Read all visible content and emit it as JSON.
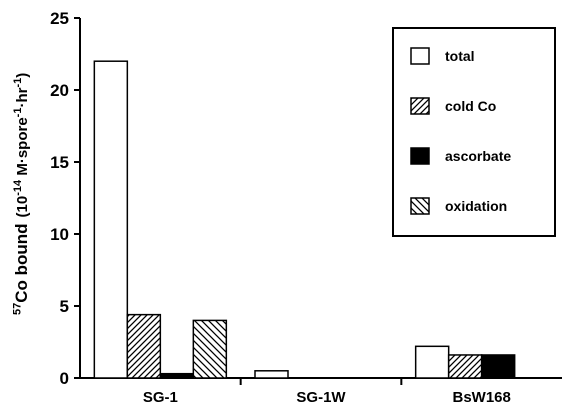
{
  "chart_data": {
    "type": "bar",
    "categories": [
      "SG-1",
      "SG-1W",
      "BsW168"
    ],
    "series": [
      {
        "name": "total",
        "pattern": "empty",
        "values": [
          22.0,
          0.5,
          2.2
        ]
      },
      {
        "name": "cold Co",
        "pattern": "diagonal-right",
        "values": [
          4.4,
          0.0,
          1.6
        ]
      },
      {
        "name": "ascorbate",
        "pattern": "solid",
        "values": [
          0.3,
          0.0,
          1.6
        ]
      },
      {
        "name": "oxidation",
        "pattern": "diagonal-left",
        "values": [
          4.0,
          0.0,
          0.0
        ]
      }
    ],
    "ylabel": {
      "iso_mass": "57",
      "element": "Co bound",
      "units_open": "(10",
      "units_exp": "-14",
      "units_mid": " M·spore",
      "units_exp2": "-1",
      "units_mid2": "·hr",
      "units_exp3": "-1",
      "units_close": ")"
    },
    "ylim": [
      0,
      25
    ],
    "yticks": [
      0,
      5,
      10,
      15,
      20,
      25
    ],
    "legend_position": "top-right",
    "grid": false,
    "colors": {
      "ink": "#000000",
      "background": "#ffffff"
    }
  }
}
